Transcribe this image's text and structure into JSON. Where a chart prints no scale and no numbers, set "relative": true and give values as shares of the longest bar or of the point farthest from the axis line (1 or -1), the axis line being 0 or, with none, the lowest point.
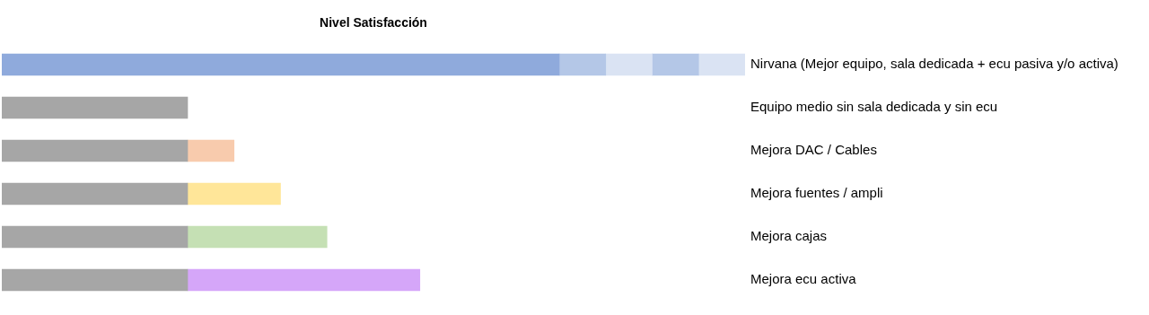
{
  "chart_data": {
    "type": "bar",
    "orientation": "horizontal",
    "stacked": true,
    "relative": true,
    "title": "Nivel Satisfacción",
    "categories": [
      "Nirvana (Mejor equipo, sala dedicada + ecu pasiva y/o activa)",
      "Equipo medio sin sala dedicada y sin ecu",
      "Mejora DAC / Cables",
      "Mejora fuentes / ampli",
      "Mejora cajas",
      "Mejora ecu activa"
    ],
    "series": [
      {
        "colors": [
          "#8faadc",
          "#a6a6a6",
          "#a6a6a6",
          "#a6a6a6",
          "#a6a6a6",
          "#a6a6a6"
        ],
        "values": [
          0.75,
          0.25,
          0.25,
          0.25,
          0.25,
          0.25
        ]
      },
      {
        "colors": [
          "#b4c7e7",
          "#a6a6a6",
          "#f8cbad",
          "#ffe699",
          "#c5e0b4",
          "#d5a6f9"
        ],
        "values": [
          0.0625,
          null,
          0.0625,
          0.125,
          0.1875,
          0.3125
        ]
      },
      {
        "color": "#dae3f3",
        "values": [
          0.0625,
          null,
          null,
          null,
          null,
          null
        ]
      },
      {
        "color": "#b4c7e7",
        "values": [
          0.0625,
          null,
          null,
          null,
          null,
          null
        ]
      },
      {
        "color": "#dae3f3",
        "values": [
          0.0625,
          null,
          null,
          null,
          null,
          null
        ]
      }
    ],
    "legend": false
  }
}
